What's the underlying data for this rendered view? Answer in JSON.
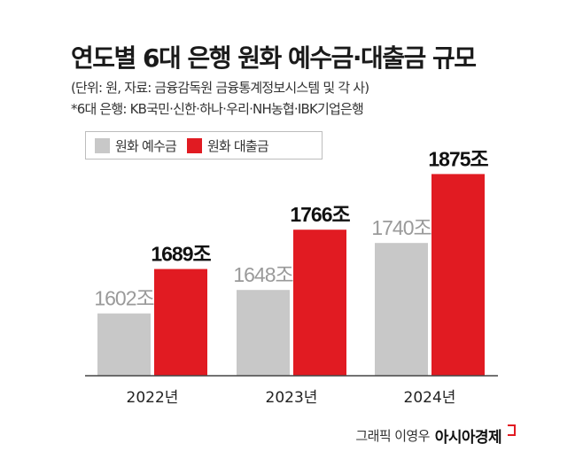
{
  "header": {
    "title": "연도별 6대 은행 원화 예수금·대출금 규모",
    "subtitle": "(단위: 원, 자료: 금융감독원 금융통계정보시스템 및 각 사)",
    "note": "*6대 은행: KB국민·신한·하나·우리·NH농협·IBK기업은행"
  },
  "legend": [
    {
      "label": "원화 예수금",
      "color": "#c8c8c8"
    },
    {
      "label": "원화 대출금",
      "color": "#e11b22"
    }
  ],
  "chart_data": {
    "type": "bar",
    "categories": [
      "2022년",
      "2023년",
      "2024년"
    ],
    "series": [
      {
        "name": "원화 예수금",
        "values": [
          1602,
          1648,
          1740
        ],
        "labels": [
          "1602조",
          "1648조",
          "1740조"
        ],
        "color": "#c8c8c8",
        "label_color": "#9a9a9a"
      },
      {
        "name": "원화 대출금",
        "values": [
          1689,
          1766,
          1875
        ],
        "labels": [
          "1689조",
          "1766조",
          "1875조"
        ],
        "color": "#e11b22",
        "label_color": "#111111"
      }
    ],
    "title": "연도별 6대 은행 원화 예수금·대출금 규모",
    "xlabel": "",
    "ylabel": "",
    "ylim": [
      1480,
      1900
    ],
    "grid": false,
    "legend_position": "top-left"
  },
  "credit": {
    "graphic": "그래픽 이영우",
    "brand": "아시아경제"
  }
}
